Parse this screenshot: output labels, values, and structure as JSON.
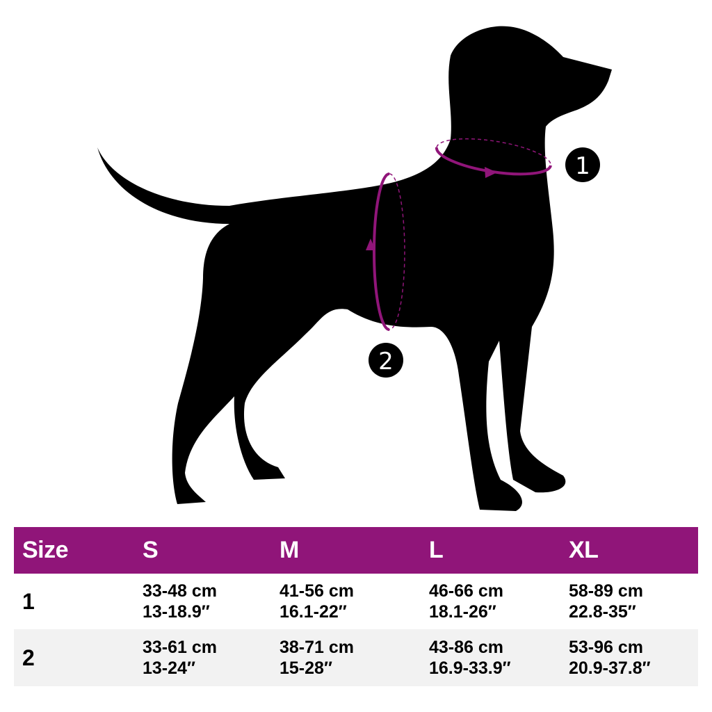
{
  "colors": {
    "accent": "#901579",
    "silhouette": "#000000",
    "row_alt": "#f2f2f2"
  },
  "illustration": {
    "markers": [
      "1",
      "2"
    ]
  },
  "table": {
    "headers": [
      "Size",
      "S",
      "M",
      "L",
      "XL"
    ],
    "rows": [
      {
        "label": "1",
        "cells": [
          [
            "33-48 cm",
            "13-18.9″"
          ],
          [
            "41-56 cm",
            "16.1-22″"
          ],
          [
            "46-66 cm",
            "18.1-26″"
          ],
          [
            "58-89 cm",
            "22.8-35″"
          ]
        ]
      },
      {
        "label": "2",
        "cells": [
          [
            "33-61 cm",
            "13-24″"
          ],
          [
            "38-71 cm",
            "15-28″"
          ],
          [
            "43-86 cm",
            "16.9-33.9″"
          ],
          [
            "53-96 cm",
            "20.9-37.8″"
          ]
        ]
      }
    ]
  }
}
